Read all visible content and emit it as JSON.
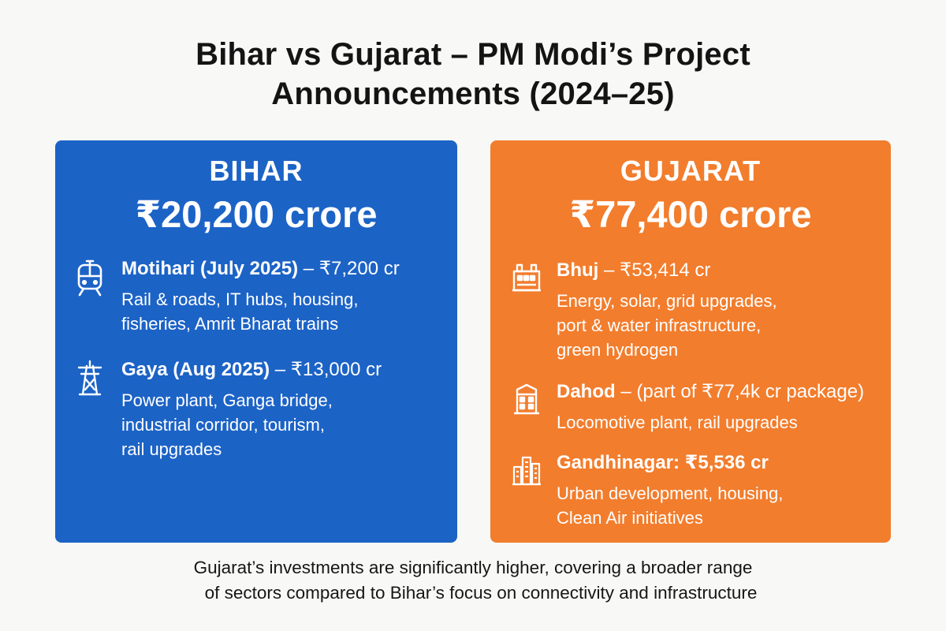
{
  "title": {
    "line1": "Bihar vs Gujarat – PM Modi’s Project",
    "line2": "Announcements (2024–25)"
  },
  "colors": {
    "bihar": "#1c63c6",
    "gujarat": "#f27d2d"
  },
  "bihar": {
    "name": "BIHAR",
    "total": "₹20,200 crore",
    "projects": [
      {
        "icon": "train-icon",
        "place": "Motihari (July 2025)",
        "detail": " – ₹7,200 cr",
        "desc": "Rail & roads, IT hubs, housing,\nfisheries, Amrit Bharat trains"
      },
      {
        "icon": "power-tower-icon",
        "place": "Gaya (Aug 2025)",
        "detail": " – ₹13,000 cr",
        "desc": "Power plant, Ganga bridge,\nindustrial corridor, tourism,\nrail upgrades"
      }
    ]
  },
  "gujarat": {
    "name": "GUJARAT",
    "total": "₹77,400 crore",
    "projects": [
      {
        "icon": "factory-icon",
        "place": "Bhuj",
        "detail": " – ₹53,414 cr",
        "desc": "Energy, solar, grid upgrades,\nport & water infrastructure,\ngreen hydrogen"
      },
      {
        "icon": "building-icon",
        "place": "Dahod",
        "detail": " – (part of ₹77,4k cr package)",
        "desc": "Locomotive plant, rail upgrades"
      },
      {
        "icon": "city-icon",
        "place": "Gandhinagar: ₹5,536 cr",
        "detail": "",
        "desc": "Urban development, housing,\nClean Air initiatives"
      }
    ]
  },
  "footer": {
    "line1": "Gujarat’s investments are significantly higher, covering a broader range",
    "line2": "of sectors compared to Bihar’s focus on connectivity and infrastructure"
  }
}
